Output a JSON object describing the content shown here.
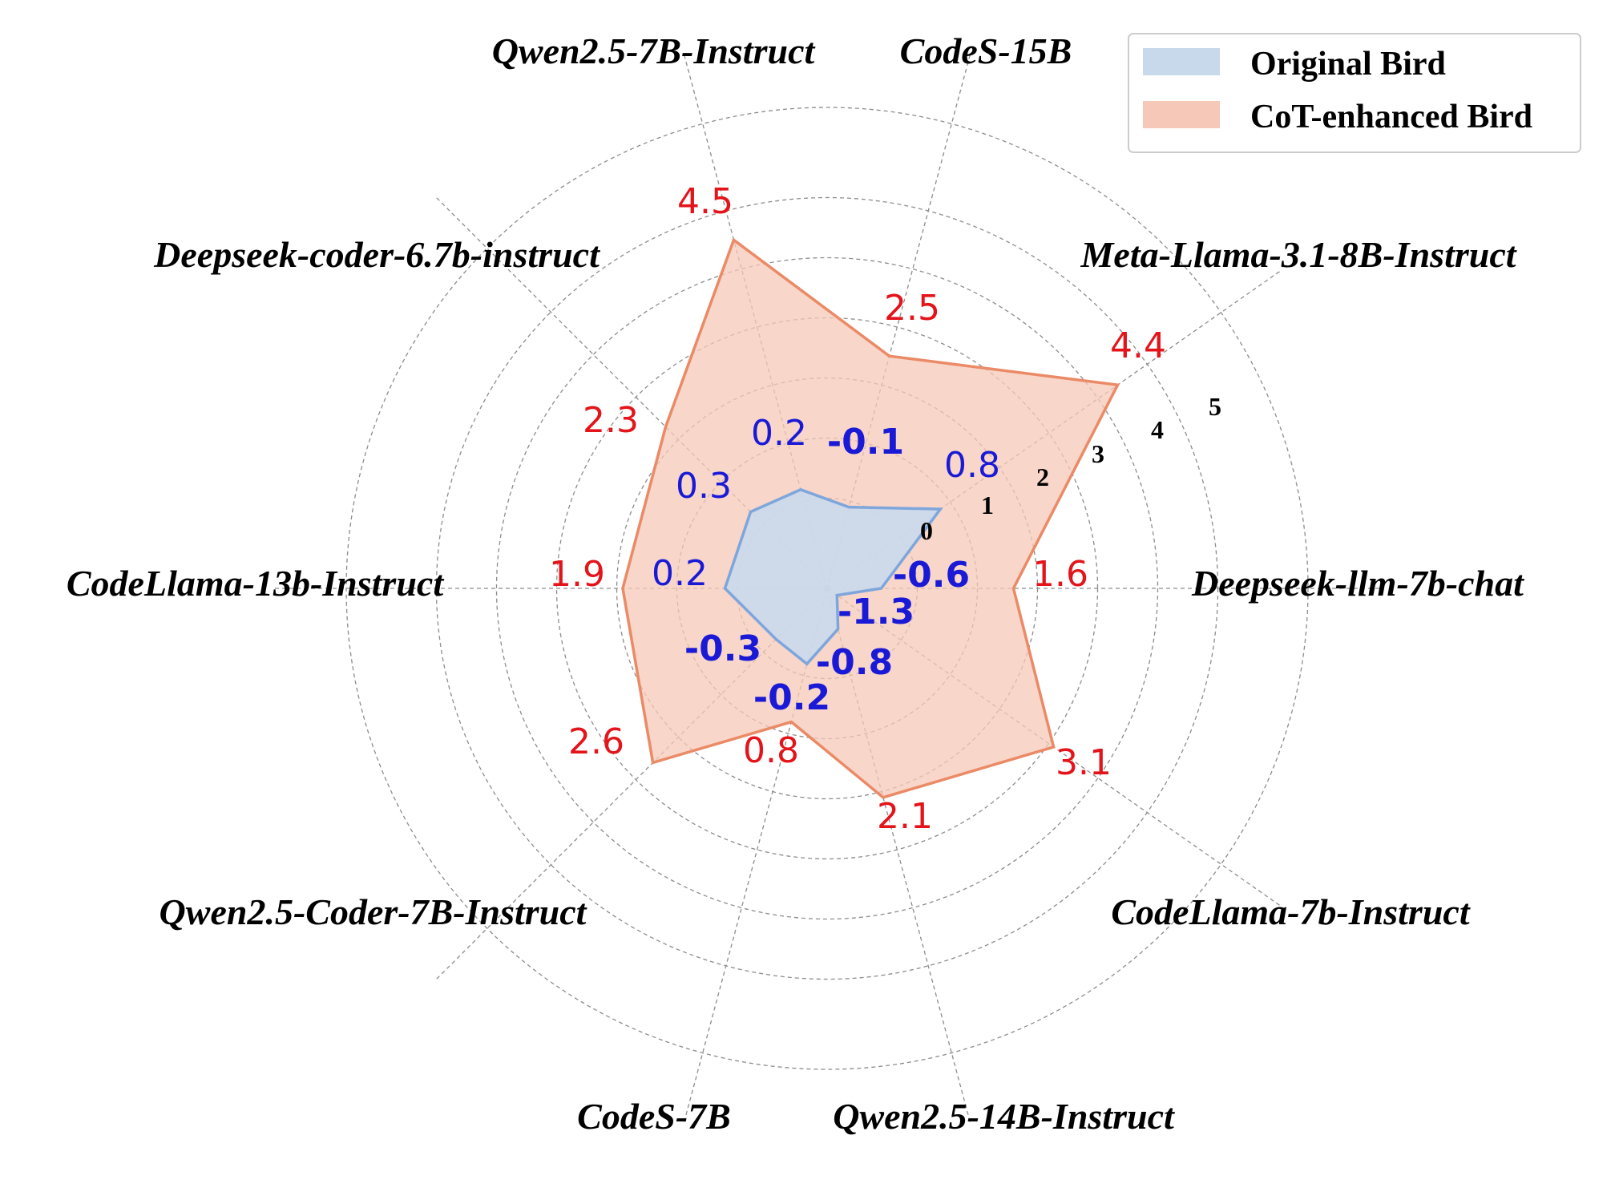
{
  "chart_data": {
    "type": "radar",
    "categories": [
      "Deepseek-llm-7b-chat",
      "Meta-Llama-3.1-8B-Instruct",
      "CodeS-15B",
      "Qwen2.5-7B-Instruct",
      "Deepseek-coder-6.7b-instruct",
      "CodeLlama-13b-Instruct",
      "Qwen2.5-Coder-7B-Instruct",
      "CodeS-7B",
      "Qwen2.5-14B-Instruct",
      "CodeLlama-7b-Instruct"
    ],
    "angles_deg": [
      0,
      35,
      75,
      105,
      135,
      180,
      225,
      255,
      285,
      325
    ],
    "radial_ticks": [
      0,
      1,
      2,
      3,
      4,
      5
    ],
    "radial_offset": 1.5,
    "rlim": [
      0,
      6.5
    ],
    "series": [
      {
        "name": "Original Bird",
        "values": [
          -0.6,
          0.8,
          -0.1,
          0.2,
          0.3,
          0.2,
          -0.3,
          -0.2,
          -0.8,
          -1.3
        ],
        "labels": [
          "-0.6",
          "0.8",
          "-0.1",
          "0.2",
          "0.3",
          "0.2",
          "-0.3",
          "-0.2",
          "-0.8",
          "-1.3"
        ],
        "fill": "#c9d9ec",
        "stroke": "#7ea6dc"
      },
      {
        "name": "CoT-enhanced Bird",
        "values": [
          1.6,
          4.4,
          2.5,
          4.5,
          2.3,
          1.9,
          2.6,
          0.8,
          2.1,
          3.1
        ],
        "labels": [
          "1.6",
          "4.4",
          "2.5",
          "4.5",
          "2.3",
          "1.9",
          "2.6",
          "0.8",
          "2.1",
          "3.1"
        ],
        "fill": "#f6c8b8",
        "stroke": "#eb8a66"
      }
    ],
    "legend": {
      "placement": "top-right"
    },
    "grid": true
  }
}
